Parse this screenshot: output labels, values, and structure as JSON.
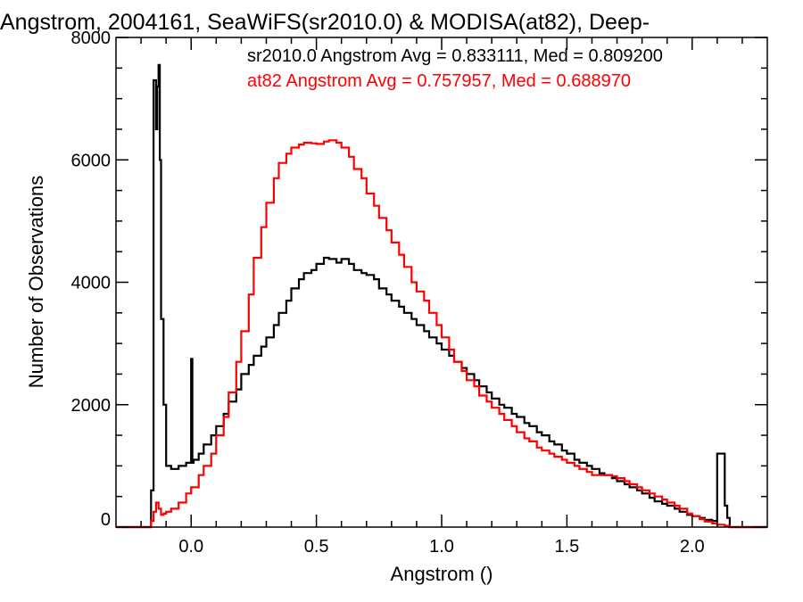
{
  "chart_data": {
    "type": "line",
    "title": "Angstrom, 2004161, SeaWiFS(sr2010.0) & MODISA(at82), Deep-",
    "xlabel": "Angstrom ()",
    "ylabel": "Number of Observations",
    "xlim": [
      -0.3,
      2.3
    ],
    "ylim": [
      0,
      8000
    ],
    "x_ticks": [
      0.0,
      0.5,
      1.0,
      1.5,
      2.0
    ],
    "x_tick_labels": [
      "0.0",
      "0.5",
      "1.0",
      "1.5",
      "2.0"
    ],
    "y_ticks": [
      0,
      2000,
      4000,
      6000,
      8000
    ],
    "y_tick_labels": [
      "0",
      "2000",
      "4000",
      "6000",
      "8000"
    ],
    "grid": false,
    "step": true,
    "annotations": [
      {
        "text": "sr2010.0 Angstrom Avg = 0.833111, Med = 0.809200",
        "color": "#000000"
      },
      {
        "text": "at82 Angstrom Avg = 0.757957, Med = 0.688970",
        "color": "#ff0000"
      }
    ],
    "series": [
      {
        "color": "#000000",
        "x": [
          -0.3,
          -0.16,
          -0.15,
          -0.14,
          -0.135,
          -0.13,
          -0.125,
          -0.12,
          -0.11,
          -0.1,
          -0.08,
          -0.05,
          -0.02,
          0.0,
          0.005,
          0.01,
          0.03,
          0.05,
          0.08,
          0.1,
          0.13,
          0.15,
          0.18,
          0.2,
          0.23,
          0.25,
          0.28,
          0.3,
          0.33,
          0.35,
          0.38,
          0.4,
          0.43,
          0.45,
          0.48,
          0.5,
          0.53,
          0.55,
          0.58,
          0.6,
          0.63,
          0.65,
          0.68,
          0.7,
          0.73,
          0.75,
          0.78,
          0.8,
          0.83,
          0.85,
          0.88,
          0.9,
          0.93,
          0.95,
          0.98,
          1.0,
          1.03,
          1.05,
          1.08,
          1.1,
          1.13,
          1.15,
          1.18,
          1.2,
          1.23,
          1.25,
          1.28,
          1.3,
          1.33,
          1.35,
          1.38,
          1.4,
          1.43,
          1.45,
          1.48,
          1.5,
          1.53,
          1.55,
          1.58,
          1.6,
          1.63,
          1.65,
          1.68,
          1.7,
          1.73,
          1.75,
          1.78,
          1.8,
          1.83,
          1.85,
          1.88,
          1.9,
          1.93,
          1.95,
          1.98,
          2.0,
          2.03,
          2.05,
          2.08,
          2.1,
          2.13,
          2.14,
          2.15,
          2.16,
          2.3
        ],
        "values": [
          0,
          600,
          7300,
          6500,
          7200,
          7550,
          6000,
          3400,
          2000,
          1000,
          950,
          1000,
          1050,
          2750,
          1050,
          1100,
          1200,
          1350,
          1500,
          1650,
          1850,
          2050,
          2250,
          2500,
          2650,
          2800,
          2950,
          3100,
          3300,
          3500,
          3700,
          3900,
          4050,
          4150,
          4200,
          4300,
          4400,
          4380,
          4320,
          4380,
          4300,
          4200,
          4150,
          4120,
          4050,
          3900,
          3800,
          3700,
          3600,
          3500,
          3400,
          3300,
          3200,
          3100,
          3000,
          2900,
          2800,
          2700,
          2600,
          2500,
          2400,
          2300,
          2200,
          2100,
          2000,
          1950,
          1850,
          1800,
          1700,
          1650,
          1550,
          1500,
          1400,
          1350,
          1250,
          1200,
          1100,
          1050,
          1000,
          950,
          880,
          850,
          800,
          750,
          700,
          650,
          600,
          550,
          480,
          420,
          380,
          350,
          300,
          250,
          200,
          180,
          150,
          120,
          100,
          1200,
          350,
          150,
          0,
          0,
          0
        ]
      },
      {
        "color": "#ff0000",
        "x": [
          -0.3,
          -0.16,
          -0.15,
          -0.14,
          -0.13,
          -0.12,
          -0.11,
          -0.1,
          -0.08,
          -0.05,
          -0.02,
          0.0,
          0.03,
          0.05,
          0.08,
          0.1,
          0.13,
          0.15,
          0.18,
          0.2,
          0.23,
          0.25,
          0.28,
          0.3,
          0.33,
          0.35,
          0.38,
          0.4,
          0.43,
          0.45,
          0.48,
          0.5,
          0.53,
          0.55,
          0.58,
          0.6,
          0.63,
          0.65,
          0.68,
          0.7,
          0.73,
          0.75,
          0.78,
          0.8,
          0.83,
          0.85,
          0.88,
          0.9,
          0.93,
          0.95,
          0.98,
          1.0,
          1.03,
          1.05,
          1.08,
          1.1,
          1.13,
          1.15,
          1.18,
          1.2,
          1.23,
          1.25,
          1.28,
          1.3,
          1.33,
          1.35,
          1.38,
          1.4,
          1.43,
          1.45,
          1.48,
          1.5,
          1.53,
          1.55,
          1.58,
          1.6,
          1.63,
          1.65,
          1.68,
          1.7,
          1.73,
          1.75,
          1.78,
          1.8,
          1.83,
          1.85,
          1.88,
          1.9,
          1.93,
          1.95,
          1.98,
          2.0,
          2.03,
          2.05,
          2.08,
          2.1,
          2.13,
          2.15,
          2.3
        ],
        "values": [
          0,
          100,
          250,
          400,
          300,
          200,
          220,
          250,
          300,
          400,
          550,
          650,
          850,
          1000,
          1200,
          1500,
          1800,
          2200,
          2700,
          3200,
          3800,
          4400,
          4900,
          5300,
          5700,
          5950,
          6100,
          6200,
          6250,
          6280,
          6270,
          6260,
          6300,
          6320,
          6280,
          6200,
          6050,
          5850,
          5700,
          5450,
          5250,
          5050,
          4850,
          4650,
          4450,
          4250,
          4000,
          3850,
          3700,
          3500,
          3300,
          3100,
          2900,
          2700,
          2550,
          2400,
          2300,
          2150,
          2050,
          1950,
          1850,
          1750,
          1650,
          1550,
          1450,
          1400,
          1300,
          1250,
          1200,
          1150,
          1100,
          1050,
          1000,
          950,
          900,
          850,
          850,
          850,
          830,
          800,
          750,
          700,
          650,
          600,
          550,
          500,
          450,
          400,
          350,
          300,
          220,
          180,
          130,
          90,
          60,
          40,
          20,
          0,
          0
        ]
      }
    ]
  }
}
